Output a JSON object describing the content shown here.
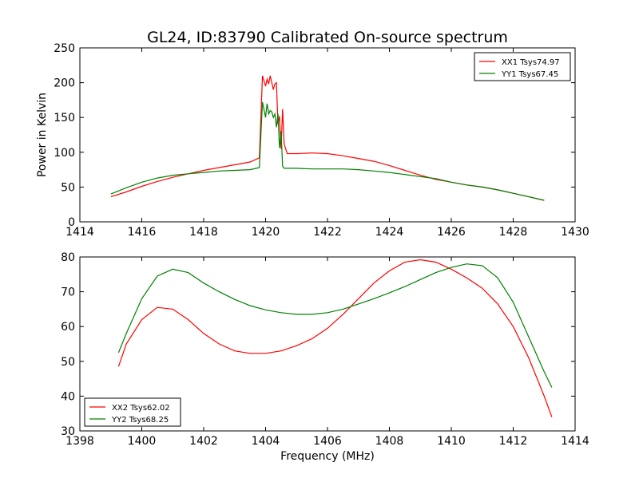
{
  "title": "GL24, ID:83790 Calibrated On-source spectrum",
  "colors": {
    "xx": "#ff0000",
    "yy": "#008000"
  },
  "chart_data": [
    {
      "type": "line",
      "xlim": [
        1414,
        1430
      ],
      "ylim": [
        0,
        250
      ],
      "xticks": [
        1414,
        1416,
        1418,
        1420,
        1422,
        1424,
        1426,
        1428,
        1430
      ],
      "yticks": [
        0,
        50,
        100,
        150,
        200,
        250
      ],
      "xlabel": "",
      "ylabel": "Power in Kelvin",
      "legend_position": "upper-right",
      "series": [
        {
          "name": "XX1 Tsys74.97",
          "color": "#ff0000",
          "x": [
            1415.0,
            1415.5,
            1416.0,
            1416.5,
            1417.0,
            1417.5,
            1418.0,
            1418.5,
            1419.0,
            1419.5,
            1419.8,
            1419.9,
            1420.0,
            1420.05,
            1420.1,
            1420.15,
            1420.2,
            1420.25,
            1420.3,
            1420.35,
            1420.4,
            1420.45,
            1420.5,
            1420.55,
            1420.6,
            1420.7,
            1421.0,
            1421.5,
            1422.0,
            1422.5,
            1423.0,
            1423.5,
            1424.0,
            1424.5,
            1425.0,
            1425.5,
            1426.0,
            1426.5,
            1427.0,
            1427.5,
            1428.0,
            1428.5,
            1429.0
          ],
          "y": [
            36,
            43,
            51,
            58,
            64,
            69,
            74,
            78,
            82,
            86,
            92,
            210,
            195,
            205,
            198,
            210,
            200,
            190,
            198,
            200,
            140,
            152,
            105,
            162,
            112,
            98,
            98,
            99,
            98,
            95,
            91,
            87,
            81,
            74,
            67,
            61,
            57,
            53,
            50,
            46,
            41,
            36,
            31
          ]
        },
        {
          "name": "YY1 Tsys67.45",
          "color": "#008000",
          "x": [
            1415.0,
            1415.5,
            1416.0,
            1416.5,
            1417.0,
            1417.5,
            1418.0,
            1418.5,
            1419.0,
            1419.5,
            1419.8,
            1419.9,
            1420.0,
            1420.05,
            1420.1,
            1420.15,
            1420.2,
            1420.25,
            1420.3,
            1420.35,
            1420.4,
            1420.45,
            1420.5,
            1420.55,
            1420.6,
            1420.7,
            1421.0,
            1421.5,
            1422.0,
            1422.5,
            1423.0,
            1423.5,
            1424.0,
            1424.5,
            1425.0,
            1425.5,
            1426.0,
            1426.5,
            1427.0,
            1427.5,
            1428.0,
            1428.5,
            1429.0
          ],
          "y": [
            40,
            49,
            57,
            63,
            67,
            69,
            71,
            73,
            74,
            75,
            78,
            172,
            150,
            170,
            155,
            160,
            158,
            150,
            155,
            136,
            155,
            106,
            130,
            80,
            77,
            77,
            77,
            76,
            76,
            76,
            75,
            73,
            71,
            68,
            65,
            62,
            57,
            53,
            50,
            46,
            41,
            36,
            31
          ]
        }
      ]
    },
    {
      "type": "line",
      "xlim": [
        1398,
        1414
      ],
      "ylim": [
        30,
        80
      ],
      "xticks": [
        1398,
        1400,
        1402,
        1404,
        1406,
        1408,
        1410,
        1412,
        1414
      ],
      "yticks": [
        30,
        40,
        50,
        60,
        70,
        80
      ],
      "xlabel": "Frequency (MHz)",
      "ylabel": "",
      "legend_position": "lower-left",
      "series": [
        {
          "name": "XX2 Tsys62.02",
          "color": "#ff0000",
          "x": [
            1399.25,
            1399.5,
            1400.0,
            1400.5,
            1401.0,
            1401.5,
            1402.0,
            1402.5,
            1403.0,
            1403.5,
            1404.0,
            1404.5,
            1405.0,
            1405.5,
            1406.0,
            1406.5,
            1407.0,
            1407.5,
            1408.0,
            1408.5,
            1409.0,
            1409.5,
            1410.0,
            1410.5,
            1411.0,
            1411.5,
            1412.0,
            1412.5,
            1413.0,
            1413.25
          ],
          "y": [
            48.5,
            55,
            62,
            65.5,
            65,
            62,
            58,
            55,
            53,
            52.3,
            52.3,
            53,
            54.5,
            56.5,
            59.5,
            63.5,
            68,
            72.5,
            76,
            78.5,
            79.2,
            78.5,
            76.5,
            74,
            71,
            66.5,
            60,
            51,
            40,
            34
          ]
        },
        {
          "name": "YY2 Tsys68.25",
          "color": "#008000",
          "x": [
            1399.25,
            1399.5,
            1400.0,
            1400.5,
            1401.0,
            1401.5,
            1402.0,
            1402.5,
            1403.0,
            1403.5,
            1404.0,
            1404.5,
            1405.0,
            1405.5,
            1406.0,
            1406.5,
            1407.0,
            1407.5,
            1408.0,
            1408.5,
            1409.0,
            1409.5,
            1410.0,
            1410.5,
            1411.0,
            1411.5,
            1412.0,
            1412.5,
            1413.0,
            1413.25
          ],
          "y": [
            52.5,
            58,
            68,
            74.5,
            76.5,
            75.5,
            72.5,
            70,
            67.8,
            66,
            64.8,
            64,
            63.5,
            63.5,
            64,
            65,
            66.5,
            68,
            69.7,
            71.5,
            73.5,
            75.5,
            77,
            78,
            77.5,
            74,
            67,
            57,
            47,
            42.5
          ]
        }
      ]
    }
  ]
}
